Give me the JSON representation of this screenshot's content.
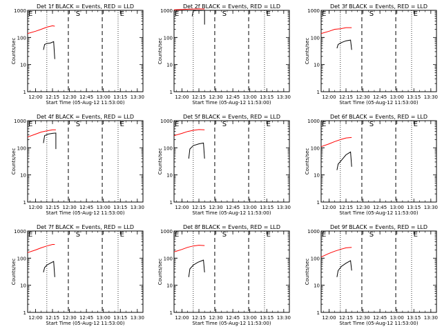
{
  "chart_data": [
    {
      "type": "line",
      "title": "Det 1f BLACK = Events, RED = LLD",
      "xlabel": "Start Time (05-Aug-12 11:53:00)",
      "ylabel": "Counts/sec",
      "yscale": "log",
      "ylim": [
        1,
        1000
      ],
      "xlim": [
        "11:53",
        "13:35"
      ],
      "xticks": [
        "12:00",
        "12:15",
        "12:30",
        "12:45",
        "13:00",
        "13:15",
        "13:30"
      ],
      "yticks": [
        "1",
        "10",
        "100",
        "1000"
      ],
      "markers": [
        "E",
        "S",
        "E"
      ],
      "series": [
        {
          "color": "#ff0000",
          "x": [
            "11:53",
            "12:00",
            "12:05",
            "12:10",
            "12:15",
            "12:17"
          ],
          "values": [
            140,
            170,
            200,
            240,
            270,
            260
          ]
        },
        {
          "color": "#000000",
          "x": [
            "12:07",
            "12:08",
            "12:10",
            "12:13",
            "12:16",
            "12:17"
          ],
          "values": [
            35,
            55,
            60,
            62,
            70,
            16
          ]
        }
      ]
    },
    {
      "type": "line",
      "title": "Det 2f BLACK = Events, RED = LLD",
      "xlabel": "Start Time (05-Aug-12 11:53:00)",
      "ylabel": "Counts/sec",
      "yscale": "log",
      "ylim": [
        1,
        1000
      ],
      "xlim": [
        "11:53",
        "13:35"
      ],
      "xticks": [
        "12:00",
        "12:15",
        "12:30",
        "12:45",
        "13:00",
        "13:15",
        "13:30"
      ],
      "yticks": [
        "1",
        "10",
        "100",
        "1000"
      ],
      "markers": [
        "E",
        "S",
        "E"
      ],
      "series": [
        {
          "color": "#ff0000",
          "x": [
            "11:53",
            "12:00",
            "12:05",
            "12:10",
            "12:15",
            "12:20"
          ],
          "values": [
            1050,
            1080,
            1100,
            1120,
            1130,
            1120
          ]
        },
        {
          "color": "#000000",
          "x": [
            "12:09",
            "12:10",
            "12:13",
            "12:17",
            "12:20",
            "12:20"
          ],
          "values": [
            600,
            950,
            980,
            990,
            1000,
            300
          ]
        }
      ]
    },
    {
      "type": "line",
      "title": "Det 3f BLACK = Events, RED = LLD",
      "xlabel": "Start Time (05-Aug-12 11:53:00)",
      "ylabel": "Counts/sec",
      "yscale": "log",
      "ylim": [
        1,
        1000
      ],
      "xlim": [
        "11:53",
        "13:35"
      ],
      "xticks": [
        "12:00",
        "12:15",
        "12:30",
        "12:45",
        "13:00",
        "13:15",
        "13:30"
      ],
      "yticks": [
        "1",
        "10",
        "100",
        "1000"
      ],
      "markers": [
        "E",
        "S",
        "E"
      ],
      "series": [
        {
          "color": "#ff0000",
          "x": [
            "11:53",
            "12:00",
            "12:05",
            "12:10",
            "12:15",
            "12:20"
          ],
          "values": [
            140,
            170,
            200,
            210,
            230,
            230
          ]
        },
        {
          "color": "#000000",
          "x": [
            "12:07",
            "12:08",
            "12:11",
            "12:15",
            "12:19",
            "12:20"
          ],
          "values": [
            40,
            55,
            65,
            75,
            80,
            35
          ]
        }
      ]
    },
    {
      "type": "line",
      "title": "Det 4f BLACK = Events, RED = LLD",
      "xlabel": "Start Time (05-Aug-12 11:53:00)",
      "ylabel": "Counts/sec",
      "yscale": "log",
      "ylim": [
        1,
        1000
      ],
      "xlim": [
        "11:53",
        "13:35"
      ],
      "xticks": [
        "12:00",
        "12:15",
        "12:30",
        "12:45",
        "13:00",
        "13:15",
        "13:30"
      ],
      "yticks": [
        "1",
        "10",
        "100",
        "1000"
      ],
      "markers": [
        "E",
        "S",
        "E"
      ],
      "series": [
        {
          "color": "#ff0000",
          "x": [
            "11:53",
            "12:00",
            "12:05",
            "12:10",
            "12:15",
            "12:18"
          ],
          "values": [
            250,
            320,
            380,
            420,
            460,
            460
          ]
        },
        {
          "color": "#000000",
          "x": [
            "12:07",
            "12:08",
            "12:11",
            "12:15",
            "12:18",
            "12:18"
          ],
          "values": [
            150,
            280,
            320,
            340,
            350,
            90
          ]
        }
      ]
    },
    {
      "type": "line",
      "title": "Det 5f BLACK = Events, RED = LLD",
      "xlabel": "Start Time (05-Aug-12 11:53:00)",
      "ylabel": "Counts/sec",
      "yscale": "log",
      "ylim": [
        1,
        1000
      ],
      "xlim": [
        "11:53",
        "13:35"
      ],
      "xticks": [
        "12:00",
        "12:15",
        "12:30",
        "12:45",
        "13:00",
        "13:15",
        "13:30"
      ],
      "yticks": [
        "1",
        "10",
        "100",
        "1000"
      ],
      "markers": [
        "E",
        "S",
        "E"
      ],
      "series": [
        {
          "color": "#ff0000",
          "x": [
            "11:53",
            "12:00",
            "12:05",
            "12:10",
            "12:15",
            "12:20"
          ],
          "values": [
            280,
            340,
            400,
            440,
            470,
            460
          ]
        },
        {
          "color": "#000000",
          "x": [
            "12:06",
            "12:07",
            "12:10",
            "12:15",
            "12:19",
            "12:20"
          ],
          "values": [
            40,
            90,
            120,
            140,
            150,
            40
          ]
        }
      ]
    },
    {
      "type": "line",
      "title": "Det 6f BLACK = Events, RED = LLD",
      "xlabel": "Start Time (05-Aug-12 11:53:00)",
      "ylabel": "Counts/sec",
      "yscale": "log",
      "ylim": [
        1,
        1000
      ],
      "xlim": [
        "11:53",
        "13:35"
      ],
      "xticks": [
        "12:00",
        "12:15",
        "12:30",
        "12:45",
        "13:00",
        "13:15",
        "13:30"
      ],
      "yticks": [
        "1",
        "10",
        "100",
        "1000"
      ],
      "markers": [
        "E",
        "S",
        "E"
      ],
      "series": [
        {
          "color": "#ff0000",
          "x": [
            "11:53",
            "12:00",
            "12:05",
            "12:10",
            "12:15",
            "12:20"
          ],
          "values": [
            110,
            140,
            170,
            200,
            230,
            240
          ]
        },
        {
          "color": "#000000",
          "x": [
            "12:07",
            "12:08",
            "12:11",
            "12:15",
            "12:19",
            "12:20"
          ],
          "values": [
            15,
            25,
            35,
            55,
            70,
            20
          ]
        }
      ]
    },
    {
      "type": "line",
      "title": "Det 7f BLACK = Events, RED = LLD",
      "xlabel": "Start Time (05-Aug-12 11:53:00)",
      "ylabel": "Counts/sec",
      "yscale": "log",
      "ylim": [
        1,
        1000
      ],
      "xlim": [
        "11:53",
        "13:35"
      ],
      "xticks": [
        "12:00",
        "12:15",
        "12:30",
        "12:45",
        "13:00",
        "13:15",
        "13:30"
      ],
      "yticks": [
        "1",
        "10",
        "100",
        "1000"
      ],
      "markers": [
        "E",
        "S",
        "E"
      ],
      "series": [
        {
          "color": "#ff0000",
          "x": [
            "11:53",
            "12:00",
            "12:05",
            "12:10",
            "12:15",
            "12:17"
          ],
          "values": [
            160,
            200,
            240,
            280,
            320,
            320
          ]
        },
        {
          "color": "#000000",
          "x": [
            "12:07",
            "12:08",
            "12:10",
            "12:13",
            "12:16",
            "12:17"
          ],
          "values": [
            30,
            45,
            55,
            65,
            75,
            20
          ]
        }
      ]
    },
    {
      "type": "line",
      "title": "Det 8f BLACK = Events, RED = LLD",
      "xlabel": "Start Time (05-Aug-12 11:53:00)",
      "ylabel": "Counts/sec",
      "yscale": "log",
      "ylim": [
        1,
        1000
      ],
      "xlim": [
        "11:53",
        "13:35"
      ],
      "xticks": [
        "12:00",
        "12:15",
        "12:30",
        "12:45",
        "13:00",
        "13:15",
        "13:30"
      ],
      "yticks": [
        "1",
        "10",
        "100",
        "1000"
      ],
      "markers": [
        "E",
        "S",
        "E"
      ],
      "series": [
        {
          "color": "#ff0000",
          "x": [
            "11:53",
            "12:00",
            "12:05",
            "12:10",
            "12:15",
            "12:20"
          ],
          "values": [
            170,
            210,
            250,
            280,
            300,
            290
          ]
        },
        {
          "color": "#000000",
          "x": [
            "12:06",
            "12:07",
            "12:10",
            "12:14",
            "12:19",
            "12:20"
          ],
          "values": [
            20,
            40,
            55,
            70,
            85,
            30
          ]
        }
      ]
    },
    {
      "type": "line",
      "title": "Det 9f BLACK = Events, RED = LLD",
      "xlabel": "Start Time (05-Aug-12 11:53:00)",
      "ylabel": "Counts/sec",
      "yscale": "log",
      "ylim": [
        1,
        1000
      ],
      "xlim": [
        "11:53",
        "13:35"
      ],
      "xticks": [
        "12:00",
        "12:15",
        "12:30",
        "12:45",
        "13:00",
        "13:15",
        "13:30"
      ],
      "yticks": [
        "1",
        "10",
        "100",
        "1000"
      ],
      "markers": [
        "E",
        "S",
        "E"
      ],
      "series": [
        {
          "color": "#ff0000",
          "x": [
            "11:53",
            "12:00",
            "12:05",
            "12:10",
            "12:15",
            "12:20"
          ],
          "values": [
            110,
            150,
            180,
            210,
            240,
            250
          ]
        },
        {
          "color": "#000000",
          "x": [
            "12:07",
            "12:08",
            "12:11",
            "12:15",
            "12:19",
            "12:20"
          ],
          "values": [
            20,
            35,
            50,
            65,
            80,
            35
          ]
        }
      ]
    }
  ]
}
